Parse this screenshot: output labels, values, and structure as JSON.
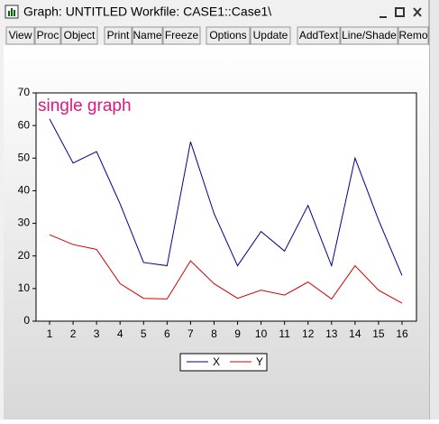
{
  "window": {
    "title": "Graph: UNTITLED    Workfile: CASE1::Case1\\",
    "buttons": [
      "View",
      "Proc",
      "Object",
      "Print",
      "Name",
      "Freeze",
      "Options",
      "Update",
      "AddText",
      "Line/Shade",
      "Remo"
    ]
  },
  "chart_data": {
    "type": "line",
    "annotation": "single graph",
    "categories": [
      "1",
      "2",
      "3",
      "4",
      "5",
      "6",
      "7",
      "8",
      "9",
      "10",
      "11",
      "12",
      "13",
      "14",
      "15",
      "16"
    ],
    "series": [
      {
        "name": "X",
        "color": "#00008b",
        "values": [
          62,
          48.5,
          52,
          36,
          18,
          17,
          55,
          33,
          17,
          27.5,
          21.5,
          35.5,
          17,
          50,
          31,
          14
        ]
      },
      {
        "name": "Y",
        "color": "#d00000",
        "values": [
          26.5,
          23.5,
          22,
          11.5,
          7,
          6.8,
          18.5,
          11.5,
          7,
          9.5,
          8,
          12,
          6.8,
          17,
          9.5,
          5.5
        ]
      }
    ],
    "ylim": [
      0,
      70
    ],
    "yticks": [
      0,
      10,
      20,
      30,
      40,
      50,
      60,
      70
    ]
  }
}
